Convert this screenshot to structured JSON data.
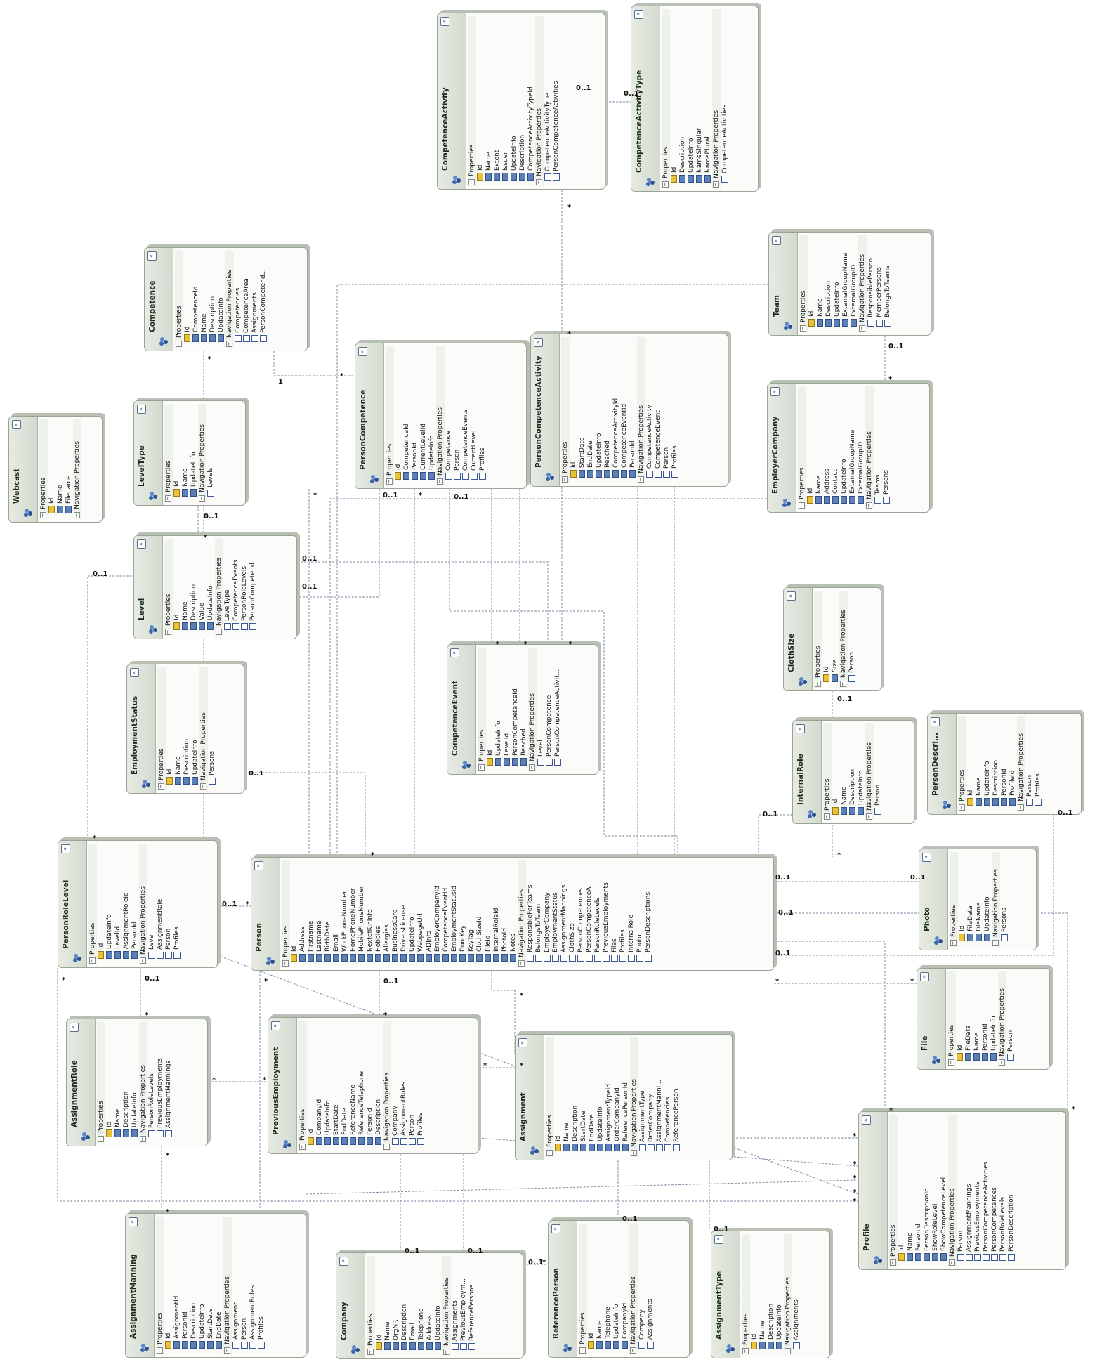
{
  "labels": {
    "properties": "Properties",
    "navigation": "Navigation Properties"
  },
  "entities": [
    {
      "name": "Webcast",
      "properties": [
        "Id",
        "Name",
        "Filename"
      ],
      "navigation": []
    },
    {
      "name": "LevelType",
      "properties": [
        "Id",
        "Name",
        "UpdateInfo"
      ],
      "navigation": [
        "Levels"
      ]
    },
    {
      "name": "Competence",
      "properties": [
        "Id",
        "CompetenceId",
        "Name",
        "Description",
        "UpdateInfo"
      ],
      "navigation": [
        "Competencies",
        "CompetenceArea",
        "Assignments",
        "PersonCompetend..."
      ]
    },
    {
      "name": "CompetenceActivity",
      "properties": [
        "Id",
        "Name",
        "Extent",
        "Issuer",
        "UpdateInfo",
        "Description",
        "CompetenceActivityTypeId"
      ],
      "navigation": [
        "CompetenceActivityType",
        "PersonCompetenceActivities"
      ]
    },
    {
      "name": "CompetenceActivityType",
      "properties": [
        "Id",
        "Description",
        "UpdateInfo",
        "NameSingular",
        "NamePlural"
      ],
      "navigation": [
        "CompetenceActivities"
      ]
    },
    {
      "name": "Team",
      "properties": [
        "Id",
        "Name",
        "Description",
        "UpdateInfo",
        "ExternalGroupName",
        "ExternalGroupID"
      ],
      "navigation": [
        "ResponsiblePerson",
        "MemberPersons",
        "BelongsToTeams"
      ]
    },
    {
      "name": "PersonCompetence",
      "properties": [
        "Id",
        "CompetenceId",
        "PersonId",
        "CurrentLevelId",
        "UpdateInfo"
      ],
      "navigation": [
        "Competence",
        "Person",
        "CompetenceEvents",
        "CurrentLevel",
        "Profiles"
      ]
    },
    {
      "name": "PersonCompetenceActivity",
      "properties": [
        "Id",
        "StartDate",
        "EndDate",
        "UpdateInfo",
        "Reached",
        "CompetenceActivityId",
        "CompetenceEventId",
        "PersonId"
      ],
      "navigation": [
        "CompetenceActivity",
        "CompetenceEvent",
        "Person",
        "Profiles"
      ]
    },
    {
      "name": "EmployerCompany",
      "properties": [
        "Id",
        "Name",
        "Address",
        "Contact",
        "UpdateInfo",
        "ExternalGroupName",
        "ExternalGroupID"
      ],
      "navigation": [
        "Teams",
        "Persons"
      ]
    },
    {
      "name": "Level",
      "properties": [
        "Id",
        "Name",
        "Description",
        "Value",
        "UpdateInfo"
      ],
      "navigation": [
        "LevelType",
        "CompetenceEvents",
        "PersonRoleLevels",
        "PersonCompetend..."
      ]
    },
    {
      "name": "CompetenceEvent",
      "properties": [
        "Id",
        "UpdateInfo",
        "LevelId",
        "PersonCompetenceId",
        "Reached"
      ],
      "navigation": [
        "Level",
        "PersonCompetence",
        "PersonCompetenceActivit..."
      ]
    },
    {
      "name": "ClothSize",
      "properties": [
        "Id",
        "Size"
      ],
      "navigation": [
        "Person"
      ]
    },
    {
      "name": "EmploymentStatus",
      "properties": [
        "Id",
        "Name",
        "Description",
        "UpdateInfo"
      ],
      "navigation": [
        "Persons"
      ]
    },
    {
      "name": "InternalRole",
      "properties": [
        "Id",
        "Name",
        "Description",
        "UpdateInfo"
      ],
      "navigation": [
        "Person"
      ]
    },
    {
      "name": "PersonDescri...",
      "properties": [
        "Id",
        "Name",
        "UpdateInfo",
        "Description",
        "PersonId",
        "ProfileId"
      ],
      "navigation": [
        "Person",
        "Profiles"
      ]
    },
    {
      "name": "PersonRoleLevel",
      "properties": [
        "Id",
        "UpdateInfo",
        "LevelId",
        "AssignmentRoleId",
        "PersonId"
      ],
      "navigation": [
        "Level",
        "AssignmentRole",
        "Person",
        "Profiles"
      ]
    },
    {
      "name": "Person",
      "properties": [
        "Id",
        "Address",
        "Firstname",
        "Lastname",
        "BirthDate",
        "Email",
        "WorkPhoneNumber",
        "HomePhoneNumber",
        "MobilePhoneNumber",
        "NextofKinInfo",
        "Hobbies",
        "Allergies",
        "BusinessCard",
        "DriversLicense",
        "UpdateInfo",
        "WebpageUrl",
        "ADInfo",
        "EmployerCompanyId",
        "CompetenceEventId",
        "EmploymentStatusId",
        "DoorKey",
        "KeyTag",
        "ClothSizeId",
        "FileId",
        "InternalRoleId",
        "PhotoId",
        "Notes"
      ],
      "navigation": [
        "ResponsibleForTeams",
        "BelongsToTeam",
        "EmployerCompany",
        "EmploymentStatus",
        "AssignmentMannings",
        "ClothSize",
        "PersonCompetences",
        "PersonCompetenceA...",
        "PersonRoleLevels",
        "PreviousEmployments",
        "Files",
        "Profiles",
        "InternalRole",
        "Photo",
        "PersonDescriptions"
      ]
    },
    {
      "name": "Photo",
      "properties": [
        "Id",
        "FileData",
        "FileName",
        "UpdateInfo"
      ],
      "navigation": [
        "Persons"
      ]
    },
    {
      "name": "File",
      "properties": [
        "Id",
        "FileData",
        "Name",
        "PersonId",
        "UpdateInfo"
      ],
      "navigation": [
        "Person"
      ]
    },
    {
      "name": "AssignmentRole",
      "properties": [
        "Id",
        "Name",
        "Description",
        "UpdateInfo"
      ],
      "navigation": [
        "PersonRoleLevels",
        "PreviousEmployments",
        "AssignmentMannings"
      ]
    },
    {
      "name": "PreviousEmployment",
      "properties": [
        "Id",
        "CompanyId",
        "UpdateInfo",
        "StartDate",
        "EndDate",
        "ReferenceName",
        "ReferenceTelephone",
        "PersonId",
        "Description"
      ],
      "navigation": [
        "Company",
        "AssignmentRoles",
        "Person",
        "Profiles"
      ]
    },
    {
      "name": "Assignment",
      "properties": [
        "Id",
        "Name",
        "Description",
        "StartDate",
        "EndDate",
        "UpdateInfo",
        "AssignmentTypeId",
        "OrderCompanyId",
        "ReferencePersonId"
      ],
      "navigation": [
        "AssignmentType",
        "OrderCompany",
        "AssignmentManni...",
        "Competencies",
        "ReferencePerson"
      ]
    },
    {
      "name": "Profile",
      "properties": [
        "Id",
        "Name",
        "PersonId",
        "PersonDescriptionId",
        "ShowRoleLevel",
        "ShowCompetenceLevel"
      ],
      "navigation": [
        "Person",
        "AssignmentMannings",
        "PreviousEmployments",
        "PersonCompetenceActivities",
        "PersonCompetences",
        "PersonRoleLevels",
        "PersonDescription"
      ]
    },
    {
      "name": "AssignmentManning",
      "properties": [
        "Id",
        "AssignmentId",
        "PersonId",
        "Description",
        "UpdateInfo",
        "StartDate",
        "EndDate"
      ],
      "navigation": [
        "Assignment",
        "Person",
        "AssignmentRoles",
        "Profiles"
      ]
    },
    {
      "name": "Company",
      "properties": [
        "Id",
        "Name",
        "OrgNR",
        "Description",
        "Email",
        "Telephone",
        "Address",
        "UpdateInfo"
      ],
      "navigation": [
        "Assignments",
        "PreviousEmploym...",
        "ReferencePersons"
      ]
    },
    {
      "name": "ReferencePerson",
      "properties": [
        "Id",
        "Name",
        "Telephone",
        "UpdateInfo",
        "CompanyId"
      ],
      "navigation": [
        "Company",
        "Assignments"
      ]
    },
    {
      "name": "AssignmentType",
      "properties": [
        "Id",
        "Name",
        "Description",
        "UpdateInfo"
      ],
      "navigation": [
        "Assignments"
      ]
    }
  ],
  "multiplicities": [
    "*",
    "0..1",
    "1"
  ]
}
